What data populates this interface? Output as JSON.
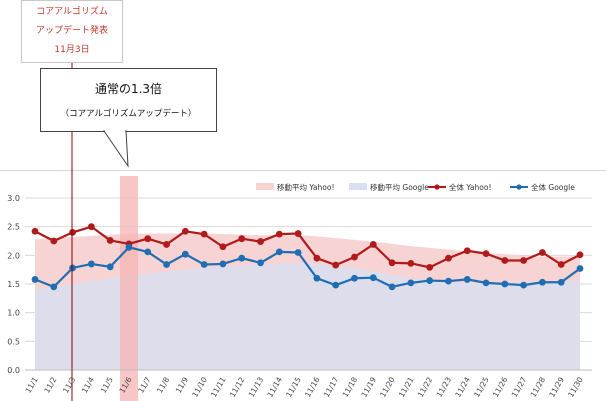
{
  "annotations": {
    "release_line1": "コアアルゴリズム",
    "release_line2": "アップデート発表",
    "release_date": "11月3日",
    "bubble_main": "通常の1.3倍",
    "bubble_sub": "（コアアルゴリズムアップデート）"
  },
  "colors": {
    "yahoo_line": "#b01a1a",
    "google_line": "#1f6db3",
    "yahoo_ma_fill": "#f8d3d3",
    "google_ma_fill": "#d9def0",
    "highlight_band": "#f6b3b3",
    "marker_line": "#8b0000"
  },
  "chart_data": {
    "type": "line",
    "categories": [
      "11/1",
      "11/2",
      "11/3",
      "11/4",
      "11/5",
      "11/6",
      "11/7",
      "11/8",
      "11/9",
      "11/10",
      "11/11",
      "11/12",
      "11/13",
      "11/14",
      "11/15",
      "11/16",
      "11/17",
      "11/18",
      "11/19",
      "11/20",
      "11/21",
      "11/22",
      "11/23",
      "11/24",
      "11/25",
      "11/26",
      "11/27",
      "11/28",
      "11/29",
      "11/30"
    ],
    "ylim": [
      0,
      3.0
    ],
    "yticks": [
      "0.0",
      "0.5",
      "1.0",
      "1.5",
      "2.0",
      "2.5",
      "3.0"
    ],
    "grid": "horizontal",
    "legend_position": "top-right",
    "highlight_category": "11/6",
    "marker_category": "11/3",
    "series": [
      {
        "name": "移動平均 Yahoo!",
        "kind": "area",
        "values": [
          2.28,
          2.3,
          2.32,
          2.34,
          2.36,
          2.37,
          2.38,
          2.38,
          2.38,
          2.38,
          2.37,
          2.36,
          2.35,
          2.35,
          2.35,
          2.33,
          2.3,
          2.27,
          2.24,
          2.2,
          2.16,
          2.13,
          2.1,
          2.07,
          2.04,
          2.02,
          2.0,
          1.98,
          1.98,
          1.98
        ]
      },
      {
        "name": "移動平均 Google",
        "kind": "area",
        "values": [
          1.4,
          1.45,
          1.5,
          1.55,
          1.6,
          1.64,
          1.68,
          1.72,
          1.75,
          1.78,
          1.8,
          1.82,
          1.84,
          1.86,
          1.87,
          1.86,
          1.82,
          1.78,
          1.72,
          1.66,
          1.6,
          1.56,
          1.53,
          1.52,
          1.52,
          1.52,
          1.53,
          1.54,
          1.55,
          1.56
        ]
      },
      {
        "name": "全体 Yahoo!",
        "kind": "line",
        "values": [
          2.42,
          2.25,
          2.4,
          2.5,
          2.26,
          2.2,
          2.29,
          2.19,
          2.42,
          2.37,
          2.15,
          2.29,
          2.24,
          2.37,
          2.38,
          1.95,
          1.83,
          1.97,
          2.19,
          1.87,
          1.86,
          1.79,
          1.95,
          2.08,
          2.03,
          1.91,
          1.91,
          2.05,
          1.84,
          2.01
        ]
      },
      {
        "name": "全体 Google",
        "kind": "line",
        "values": [
          1.58,
          1.45,
          1.78,
          1.85,
          1.8,
          2.14,
          2.06,
          1.84,
          2.02,
          1.84,
          1.85,
          1.95,
          1.87,
          2.06,
          2.05,
          1.6,
          1.48,
          1.6,
          1.61,
          1.45,
          1.52,
          1.56,
          1.55,
          1.58,
          1.52,
          1.5,
          1.48,
          1.53,
          1.53,
          1.77
        ]
      }
    ]
  }
}
